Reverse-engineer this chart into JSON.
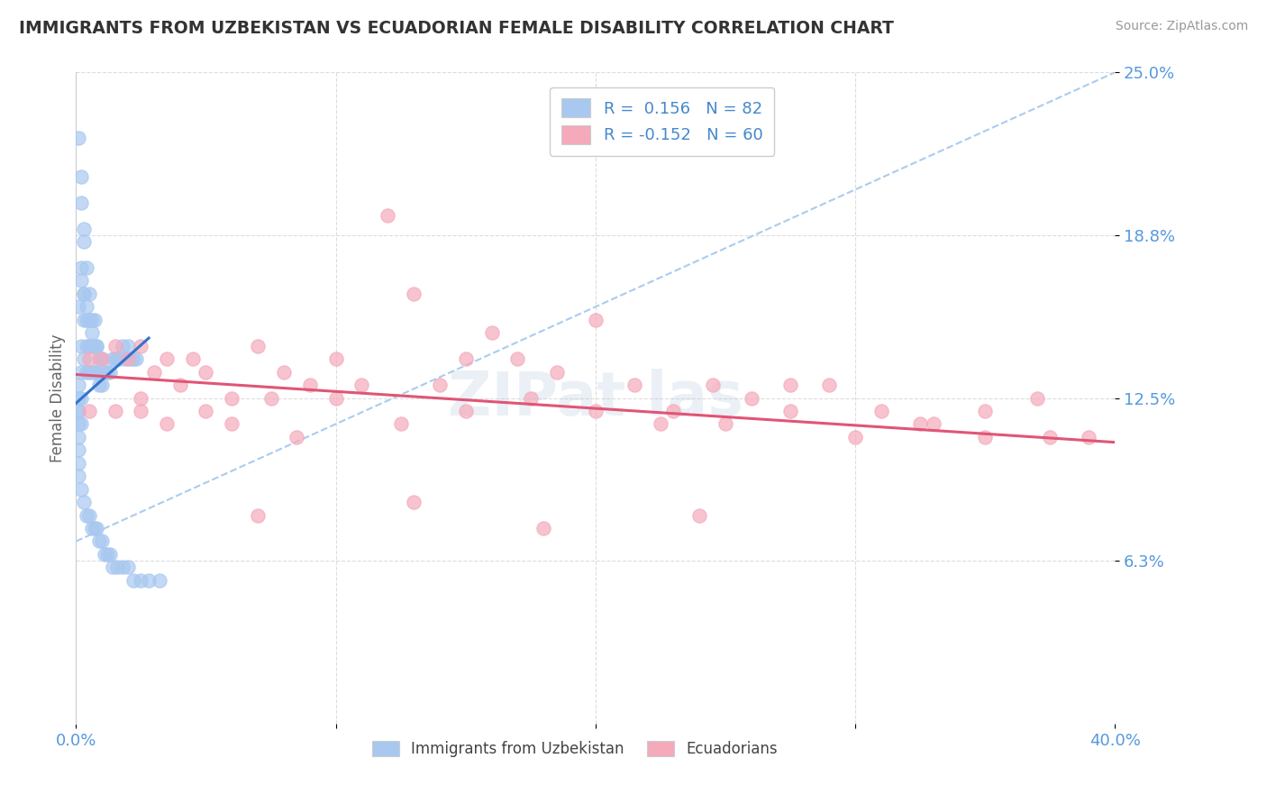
{
  "title": "IMMIGRANTS FROM UZBEKISTAN VS ECUADORIAN FEMALE DISABILITY CORRELATION CHART",
  "source": "Source: ZipAtlas.com",
  "ylabel": "Female Disability",
  "y_tick_vals": [
    0.0625,
    0.125,
    0.1875,
    0.25
  ],
  "y_tick_labels": [
    "6.3%",
    "12.5%",
    "18.8%",
    "25.0%"
  ],
  "x_lim": [
    0.0,
    0.4
  ],
  "y_lim": [
    0.0,
    0.25
  ],
  "blue_scatter_color": "#A8C8F0",
  "pink_scatter_color": "#F4AABB",
  "blue_line_color": "#3373CC",
  "pink_line_color": "#E05575",
  "gray_dash_color": "#AACCEE",
  "tick_label_color": "#5599DD",
  "title_color": "#333333",
  "source_color": "#999999",
  "background_color": "#FFFFFF",
  "grid_color": "#DDDDDD",
  "legend_r1_black": "R = ",
  "legend_r1_blue": " 0.156",
  "legend_r1_n": "  N = ",
  "legend_r1_nval": "82",
  "legend_r2_black": "R = ",
  "legend_r2_blue": "-0.152",
  "legend_r2_n": "  N = ",
  "legend_r2_nval": "60",
  "blue_x": [
    0.001,
    0.001,
    0.001,
    0.001,
    0.001,
    0.001,
    0.001,
    0.002,
    0.002,
    0.002,
    0.002,
    0.002,
    0.002,
    0.003,
    0.003,
    0.003,
    0.003,
    0.004,
    0.004,
    0.004,
    0.004,
    0.005,
    0.005,
    0.005,
    0.005,
    0.006,
    0.006,
    0.006,
    0.007,
    0.007,
    0.007,
    0.008,
    0.008,
    0.009,
    0.009,
    0.01,
    0.01,
    0.011,
    0.012,
    0.013,
    0.014,
    0.015,
    0.016,
    0.017,
    0.018,
    0.019,
    0.02,
    0.021,
    0.022,
    0.023,
    0.001,
    0.001,
    0.002,
    0.002,
    0.003,
    0.003,
    0.004,
    0.005,
    0.006,
    0.007,
    0.008,
    0.009,
    0.01,
    0.011,
    0.012,
    0.013,
    0.014,
    0.016,
    0.018,
    0.02,
    0.022,
    0.025,
    0.028,
    0.032,
    0.001,
    0.001,
    0.002,
    0.003,
    0.004,
    0.005,
    0.006,
    0.008
  ],
  "blue_y": [
    0.13,
    0.125,
    0.12,
    0.115,
    0.11,
    0.105,
    0.1,
    0.2,
    0.17,
    0.145,
    0.135,
    0.125,
    0.115,
    0.185,
    0.165,
    0.155,
    0.14,
    0.175,
    0.155,
    0.145,
    0.135,
    0.165,
    0.155,
    0.145,
    0.135,
    0.155,
    0.145,
    0.135,
    0.155,
    0.145,
    0.135,
    0.145,
    0.135,
    0.14,
    0.13,
    0.14,
    0.13,
    0.135,
    0.135,
    0.135,
    0.14,
    0.14,
    0.14,
    0.14,
    0.145,
    0.14,
    0.145,
    0.14,
    0.14,
    0.14,
    0.225,
    0.095,
    0.21,
    0.09,
    0.19,
    0.085,
    0.08,
    0.08,
    0.075,
    0.075,
    0.075,
    0.07,
    0.07,
    0.065,
    0.065,
    0.065,
    0.06,
    0.06,
    0.06,
    0.06,
    0.055,
    0.055,
    0.055,
    0.055,
    0.12,
    0.16,
    0.175,
    0.165,
    0.16,
    0.155,
    0.15,
    0.145
  ],
  "pink_x": [
    0.005,
    0.01,
    0.015,
    0.02,
    0.025,
    0.03,
    0.035,
    0.04,
    0.045,
    0.05,
    0.06,
    0.07,
    0.08,
    0.09,
    0.1,
    0.11,
    0.12,
    0.13,
    0.14,
    0.15,
    0.16,
    0.17,
    0.185,
    0.2,
    0.215,
    0.23,
    0.245,
    0.26,
    0.275,
    0.29,
    0.31,
    0.33,
    0.35,
    0.37,
    0.39,
    0.025,
    0.05,
    0.075,
    0.1,
    0.125,
    0.15,
    0.175,
    0.2,
    0.225,
    0.25,
    0.275,
    0.3,
    0.325,
    0.35,
    0.375,
    0.07,
    0.13,
    0.18,
    0.24,
    0.005,
    0.015,
    0.025,
    0.035,
    0.06,
    0.085
  ],
  "pink_y": [
    0.14,
    0.14,
    0.145,
    0.14,
    0.145,
    0.135,
    0.14,
    0.13,
    0.14,
    0.135,
    0.125,
    0.145,
    0.135,
    0.13,
    0.14,
    0.13,
    0.195,
    0.165,
    0.13,
    0.14,
    0.15,
    0.14,
    0.135,
    0.155,
    0.13,
    0.12,
    0.13,
    0.125,
    0.13,
    0.13,
    0.12,
    0.115,
    0.12,
    0.125,
    0.11,
    0.125,
    0.12,
    0.125,
    0.125,
    0.115,
    0.12,
    0.125,
    0.12,
    0.115,
    0.115,
    0.12,
    0.11,
    0.115,
    0.11,
    0.11,
    0.08,
    0.085,
    0.075,
    0.08,
    0.12,
    0.12,
    0.12,
    0.115,
    0.115,
    0.11
  ],
  "blue_trend_x": [
    0.0,
    0.028
  ],
  "blue_trend_y": [
    0.123,
    0.148
  ],
  "pink_trend_x": [
    0.0,
    0.4
  ],
  "pink_trend_y": [
    0.134,
    0.108
  ],
  "dash_line_x": [
    0.0,
    0.4
  ],
  "dash_line_y": [
    0.07,
    0.25
  ]
}
